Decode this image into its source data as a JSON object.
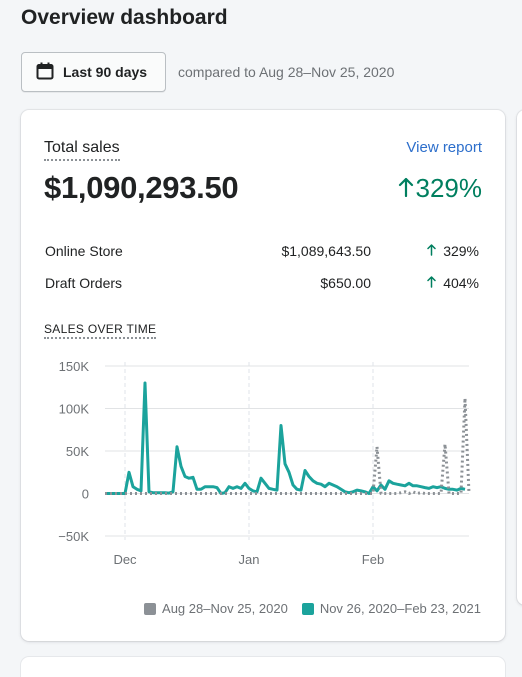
{
  "page": {
    "title": "Overview dashboard"
  },
  "date_picker": {
    "label": "Last 90 days",
    "compare_text": "compared to Aug 28–Nov 25, 2020"
  },
  "card": {
    "label": "Total sales",
    "view_report": "View report",
    "total": "$1,090,293.50",
    "total_change": "329%",
    "rows": [
      {
        "name": "Online Store",
        "amount": "$1,089,643.50",
        "change": "329%"
      },
      {
        "name": "Draft Orders",
        "amount": "$650.00",
        "change": "404%"
      }
    ],
    "chart_title": "SALES OVER TIME"
  },
  "colors": {
    "accent": "#007f5f",
    "current_series": "#1ba39c",
    "previous_series": "#8c9196",
    "link": "#2c6ecb"
  },
  "icons": {
    "calendar": "calendar-icon",
    "up_arrow": "arrow-up-icon"
  },
  "chart_data": {
    "type": "line",
    "title": "SALES OVER TIME",
    "ylabel": "",
    "xlabel": "",
    "y_ticks": [
      "150K",
      "100K",
      "50K",
      "0",
      "−50K"
    ],
    "y_tick_values": [
      150000,
      100000,
      50000,
      0,
      -50000
    ],
    "ylim": [
      -50000,
      150000
    ],
    "x_ticks": [
      "Dec",
      "Jan",
      "Feb"
    ],
    "x_tick_index": [
      5,
      36,
      67
    ],
    "grid": true,
    "legend_position": "bottom-right",
    "series": [
      {
        "name": "Aug 28–Nov 25, 2020",
        "style": "dotted",
        "color": "#8c9196",
        "values": [
          0,
          0,
          0,
          0,
          0,
          0,
          0,
          0,
          0,
          0,
          0,
          0,
          0,
          0,
          0,
          0,
          0,
          0,
          0,
          0,
          0,
          0,
          0,
          0,
          0,
          0,
          0,
          0,
          0,
          0,
          0,
          0,
          0,
          0,
          0,
          0,
          0,
          0,
          0,
          0,
          0,
          0,
          0,
          0,
          0,
          0,
          0,
          0,
          0,
          0,
          0,
          0,
          0,
          0,
          0,
          0,
          0,
          0,
          0,
          0,
          0,
          0,
          0,
          0,
          0,
          0,
          0,
          0,
          55000,
          0,
          0,
          0,
          0,
          0,
          1000,
          2000,
          0,
          2000,
          0,
          1000,
          0,
          0,
          0,
          0,
          0,
          58000,
          0,
          0,
          0,
          0,
          112000,
          0
        ]
      },
      {
        "name": "Nov 26, 2020–Feb 23, 2021",
        "style": "solid",
        "color": "#1ba39c",
        "values": [
          0,
          0,
          0,
          0,
          0,
          0,
          25000,
          8000,
          5000,
          3000,
          130000,
          2000,
          1000,
          1000,
          1000,
          1000,
          500,
          2000,
          55000,
          32000,
          20000,
          18000,
          19000,
          5000,
          5000,
          8000,
          8000,
          8000,
          7000,
          0,
          1000,
          8000,
          6000,
          8000,
          6000,
          12000,
          6000,
          3000,
          2000,
          18000,
          12000,
          6000,
          5000,
          4000,
          80000,
          35000,
          25000,
          10000,
          5000,
          4000,
          27000,
          20000,
          15000,
          12000,
          11000,
          8000,
          12000,
          10000,
          8000,
          5000,
          2000,
          1000,
          2000,
          4000,
          3000,
          2000,
          0,
          8000,
          3000,
          10000,
          5000,
          15000,
          12000,
          11000,
          10000,
          9000,
          12000,
          9000,
          9000,
          8000,
          7000,
          6000,
          8000,
          7000,
          8000,
          6000,
          5000,
          5000,
          4000,
          6000,
          5000
        ]
      }
    ]
  }
}
